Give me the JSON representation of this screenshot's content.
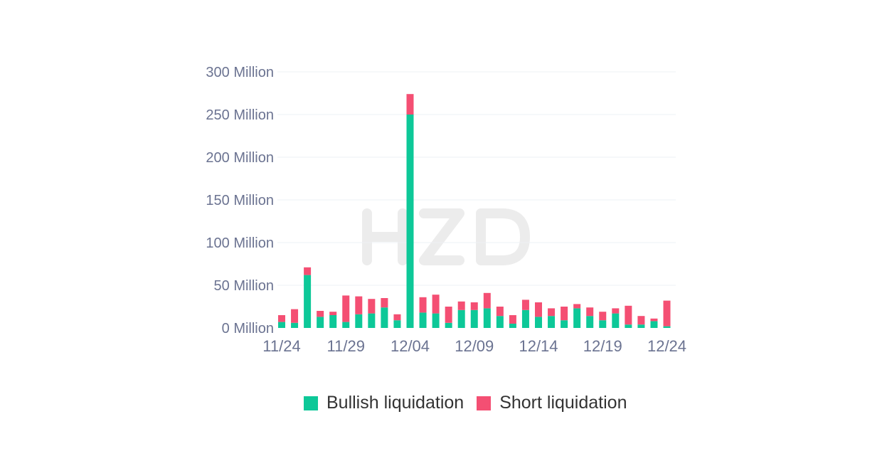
{
  "colors": {
    "bullish": "#0dc898",
    "short": "#f44f73",
    "axis_text": "#6b7391"
  },
  "legend": {
    "bullish_label": "Bullish liquidation",
    "short_label": "Short liquidation"
  },
  "chart_data": {
    "type": "bar",
    "stacked": true,
    "y_tick_labels": [
      "0 Million",
      "50 Million",
      "100 Million",
      "150 Million",
      "200 Million",
      "250 Million",
      "300 Million"
    ],
    "x_tick_labels": [
      "11/24",
      "11/29",
      "12/04",
      "12/09",
      "12/14",
      "12/19",
      "12/24"
    ],
    "ylim": [
      0,
      300
    ],
    "grid": true,
    "legend_position": "bottom",
    "categories": [
      "11/24",
      "11/25",
      "11/26",
      "11/27",
      "11/28",
      "11/29",
      "11/30",
      "12/01",
      "12/02",
      "12/03",
      "12/04",
      "12/05",
      "12/06",
      "12/07",
      "12/08",
      "12/09",
      "12/10",
      "12/11",
      "12/12",
      "12/13",
      "12/14",
      "12/15",
      "12/16",
      "12/17",
      "12/18",
      "12/19",
      "12/20",
      "12/21",
      "12/22",
      "12/23",
      "12/24"
    ],
    "series": [
      {
        "name": "Bullish liquidation",
        "values": [
          7,
          6,
          62,
          13,
          15,
          7,
          16,
          17,
          24,
          9,
          250,
          18,
          17,
          6,
          21,
          21,
          23,
          14,
          5,
          21,
          13,
          14,
          9,
          23,
          14,
          9,
          17,
          4,
          4,
          8,
          2
        ]
      },
      {
        "name": "Short liquidation",
        "values": [
          8,
          16,
          9,
          7,
          4,
          31,
          21,
          17,
          11,
          7,
          24,
          18,
          22,
          19,
          10,
          9,
          18,
          11,
          10,
          12,
          17,
          9,
          16,
          5,
          10,
          10,
          6,
          22,
          10,
          3,
          30
        ]
      }
    ]
  }
}
